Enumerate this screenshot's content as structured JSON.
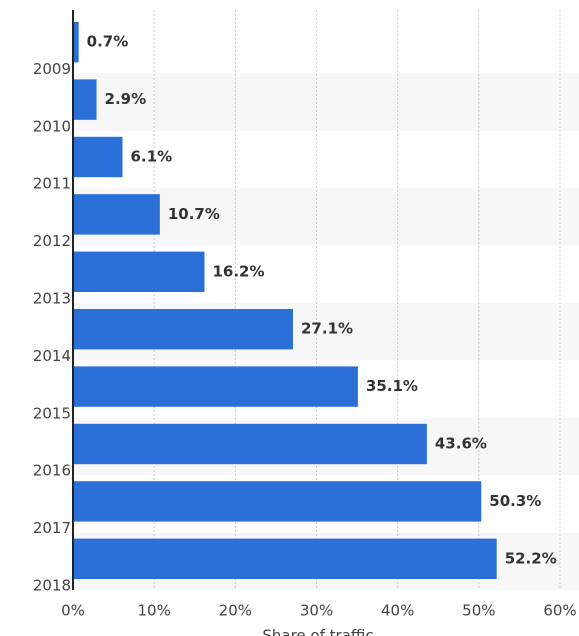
{
  "chart_data": {
    "type": "barh",
    "x_label": "Share of traffic",
    "categories": [
      "2009",
      "2010",
      "2011",
      "2012",
      "2013",
      "2014",
      "2015",
      "2016",
      "2017",
      "2018"
    ],
    "values": [
      0.7,
      2.9,
      6.1,
      10.7,
      16.2,
      27.1,
      35.1,
      43.6,
      50.3,
      52.2
    ],
    "value_labels": [
      "0.7%",
      "2.9%",
      "6.1%",
      "10.7%",
      "16.2%",
      "27.1%",
      "35.1%",
      "43.6%",
      "50.3%",
      "52.2%"
    ],
    "color": "#2a70d8",
    "xlim": [
      0,
      60
    ],
    "xticks": [
      {
        "value": 0,
        "label": "0%"
      },
      {
        "value": 10,
        "label": "10%"
      },
      {
        "value": 20,
        "label": "20%"
      },
      {
        "value": 30,
        "label": "30%"
      },
      {
        "value": 40,
        "label": "40%"
      },
      {
        "value": 50,
        "label": "50%"
      },
      {
        "value": 60,
        "label": "60%"
      }
    ],
    "grid": true
  }
}
